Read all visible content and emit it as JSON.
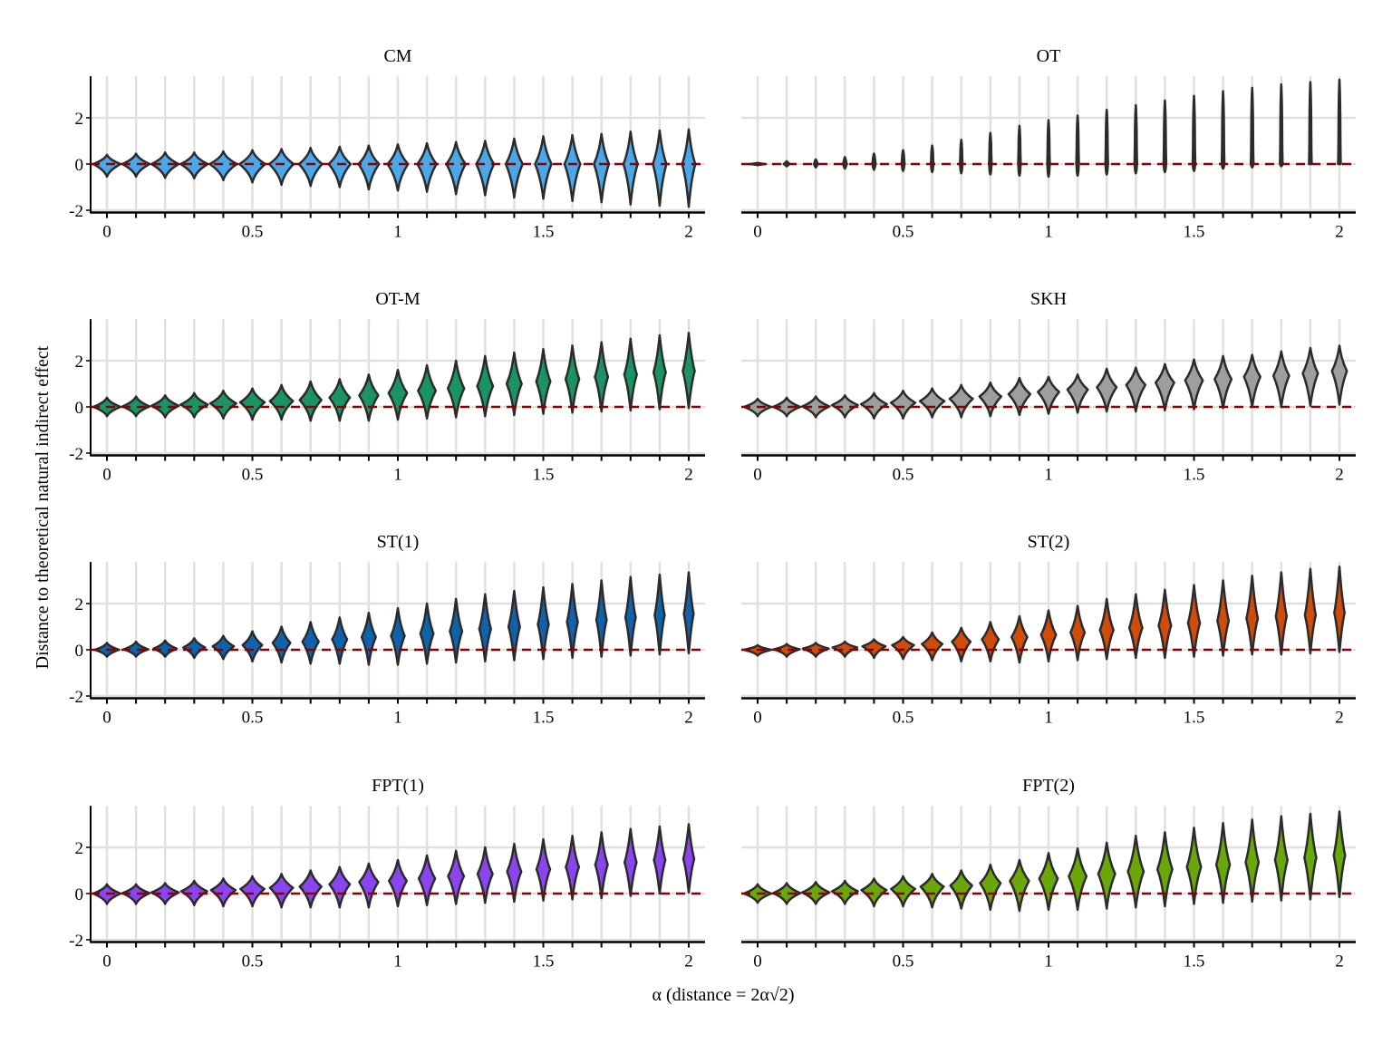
{
  "chart_data": {
    "type": "violin",
    "layout": "facet grid, 4 rows x 2 columns",
    "xlabel": "α (distance  = 2α√2)",
    "ylabel": "Distance to theoretical natural indirect effect",
    "x": [
      0,
      0.1,
      0.2,
      0.3,
      0.4,
      0.5,
      0.6,
      0.7,
      0.8,
      0.9,
      1,
      1.1,
      1.2,
      1.3,
      1.4,
      1.5,
      1.6,
      1.7,
      1.8,
      1.9,
      2
    ],
    "x_ticks": [
      "0",
      "0.5",
      "1",
      "1.5",
      "2"
    ],
    "x_tick_values": [
      0,
      0.5,
      1,
      1.5,
      2
    ],
    "y_ticks": [
      "-2",
      "0",
      "2"
    ],
    "y_tick_values": [
      -2,
      0,
      2
    ],
    "ylim": [
      -2,
      3.8
    ],
    "reference_line": {
      "y": 0,
      "style": "dashed",
      "color": "#8B0000"
    },
    "grid": true,
    "outline_color": "#2b2b2b",
    "panels": [
      {
        "title": "CM",
        "fill": "#4AA8E8",
        "center": [
          0,
          0,
          0,
          0,
          0,
          0,
          0,
          0,
          0,
          0,
          0,
          0,
          0,
          0,
          0,
          0,
          0,
          0,
          0,
          0,
          0
        ],
        "low": [
          -0.55,
          -0.55,
          -0.6,
          -0.62,
          -0.7,
          -0.8,
          -0.9,
          -0.95,
          -1.0,
          -1.1,
          -1.15,
          -1.2,
          -1.3,
          -1.35,
          -1.45,
          -1.5,
          -1.6,
          -1.65,
          -1.75,
          -1.8,
          -1.85
        ],
        "high": [
          0.4,
          0.45,
          0.5,
          0.5,
          0.55,
          0.6,
          0.65,
          0.7,
          0.75,
          0.8,
          0.85,
          0.9,
          0.95,
          1.0,
          1.1,
          1.2,
          1.25,
          1.3,
          1.4,
          1.45,
          1.5
        ],
        "width": [
          1,
          1,
          1,
          1,
          1,
          0.95,
          0.9,
          0.85,
          0.8,
          0.75,
          0.75,
          0.7,
          0.7,
          0.65,
          0.62,
          0.6,
          0.58,
          0.55,
          0.52,
          0.5,
          0.48
        ]
      },
      {
        "title": "OT",
        "fill": "#3a3a3a",
        "center": [
          0,
          0,
          0,
          0,
          0,
          0,
          0,
          0,
          0,
          0,
          0,
          0,
          0,
          0,
          0,
          0,
          0,
          0,
          0,
          0,
          0
        ],
        "low": [
          -0.05,
          -0.1,
          -0.15,
          -0.2,
          -0.25,
          -0.3,
          -0.35,
          -0.4,
          -0.45,
          -0.5,
          -0.55,
          -0.5,
          -0.45,
          -0.4,
          -0.35,
          -0.3,
          -0.2,
          -0.15,
          -0.1,
          0,
          0
        ],
        "high": [
          0.05,
          0.12,
          0.2,
          0.3,
          0.45,
          0.6,
          0.8,
          1.05,
          1.35,
          1.65,
          1.9,
          2.1,
          2.35,
          2.55,
          2.75,
          2.95,
          3.15,
          3.3,
          3.45,
          3.55,
          3.65
        ],
        "width": [
          0.6,
          0.22,
          0.15,
          0.15,
          0.13,
          0.12,
          0.1,
          0.1,
          0.1,
          0.1,
          0.1,
          0.1,
          0.1,
          0.1,
          0.1,
          0.1,
          0.1,
          0.1,
          0.1,
          0.1,
          0.1
        ]
      },
      {
        "title": "OT-M",
        "fill": "#1A9464",
        "center": [
          0,
          0.02,
          0.05,
          0.1,
          0.15,
          0.2,
          0.25,
          0.3,
          0.4,
          0.5,
          0.6,
          0.7,
          0.8,
          0.9,
          1.0,
          1.1,
          1.2,
          1.3,
          1.4,
          1.5,
          1.55
        ],
        "low": [
          -0.4,
          -0.4,
          -0.45,
          -0.45,
          -0.5,
          -0.55,
          -0.55,
          -0.6,
          -0.6,
          -0.6,
          -0.55,
          -0.5,
          -0.45,
          -0.4,
          -0.35,
          -0.3,
          -0.25,
          -0.2,
          -0.15,
          -0.1,
          -0.05
        ],
        "high": [
          0.4,
          0.45,
          0.5,
          0.6,
          0.7,
          0.8,
          0.95,
          1.1,
          1.2,
          1.4,
          1.6,
          1.8,
          2.0,
          2.2,
          2.35,
          2.5,
          2.65,
          2.8,
          2.95,
          3.1,
          3.2
        ],
        "width": [
          1,
          1,
          1,
          1,
          0.95,
          0.9,
          0.85,
          0.8,
          0.75,
          0.7,
          0.68,
          0.65,
          0.6,
          0.58,
          0.55,
          0.52,
          0.5,
          0.48,
          0.46,
          0.45,
          0.44
        ]
      },
      {
        "title": "SKH",
        "fill": "#9E9E9E",
        "center": [
          0,
          0,
          0.02,
          0.08,
          0.12,
          0.18,
          0.25,
          0.35,
          0.45,
          0.55,
          0.65,
          0.75,
          0.85,
          0.95,
          1.05,
          1.15,
          1.2,
          1.3,
          1.35,
          1.45,
          1.55
        ],
        "low": [
          -0.4,
          -0.4,
          -0.45,
          -0.45,
          -0.5,
          -0.5,
          -0.45,
          -0.45,
          -0.4,
          -0.35,
          -0.3,
          -0.25,
          -0.2,
          -0.2,
          -0.15,
          -0.1,
          -0.05,
          0,
          0,
          0.05,
          0.1
        ],
        "high": [
          0.35,
          0.4,
          0.45,
          0.5,
          0.6,
          0.7,
          0.8,
          0.95,
          1.05,
          1.25,
          1.3,
          1.4,
          1.65,
          1.7,
          1.85,
          2.05,
          2.2,
          2.25,
          2.4,
          2.55,
          2.65
        ],
        "width": [
          1,
          1,
          1,
          0.95,
          0.95,
          0.9,
          0.9,
          0.85,
          0.8,
          0.8,
          0.78,
          0.75,
          0.72,
          0.7,
          0.68,
          0.65,
          0.62,
          0.6,
          0.58,
          0.56,
          0.55
        ]
      },
      {
        "title": "ST(1)",
        "fill": "#0F62AC",
        "center": [
          0,
          0.02,
          0.05,
          0.1,
          0.15,
          0.2,
          0.3,
          0.35,
          0.45,
          0.55,
          0.6,
          0.7,
          0.8,
          0.9,
          1.0,
          1.1,
          1.2,
          1.3,
          1.4,
          1.5,
          1.55
        ],
        "low": [
          -0.3,
          -0.3,
          -0.3,
          -0.35,
          -0.4,
          -0.5,
          -0.55,
          -0.6,
          -0.6,
          -0.65,
          -0.65,
          -0.6,
          -0.55,
          -0.5,
          -0.45,
          -0.4,
          -0.35,
          -0.3,
          -0.25,
          -0.2,
          -0.15
        ],
        "high": [
          0.3,
          0.35,
          0.4,
          0.5,
          0.6,
          0.8,
          1.0,
          1.2,
          1.4,
          1.6,
          1.8,
          2.0,
          2.2,
          2.4,
          2.55,
          2.7,
          2.85,
          3.0,
          3.15,
          3.25,
          3.35
        ],
        "width": [
          0.9,
          0.9,
          0.85,
          0.8,
          0.78,
          0.72,
          0.65,
          0.6,
          0.55,
          0.52,
          0.5,
          0.48,
          0.45,
          0.43,
          0.42,
          0.4,
          0.4,
          0.38,
          0.38,
          0.37,
          0.36
        ]
      },
      {
        "title": "ST(2)",
        "fill": "#D04C0A",
        "center": [
          0,
          0.02,
          0.05,
          0.1,
          0.15,
          0.2,
          0.25,
          0.35,
          0.45,
          0.55,
          0.65,
          0.75,
          0.85,
          0.95,
          1.05,
          1.15,
          1.25,
          1.35,
          1.45,
          1.5,
          1.6
        ],
        "low": [
          -0.25,
          -0.3,
          -0.3,
          -0.3,
          -0.35,
          -0.4,
          -0.45,
          -0.5,
          -0.5,
          -0.55,
          -0.5,
          -0.45,
          -0.4,
          -0.35,
          -0.35,
          -0.3,
          -0.25,
          -0.2,
          -0.2,
          -0.15,
          -0.1
        ],
        "high": [
          0.2,
          0.25,
          0.3,
          0.35,
          0.45,
          0.55,
          0.75,
          0.95,
          1.2,
          1.45,
          1.7,
          1.9,
          2.2,
          2.4,
          2.6,
          2.8,
          3.0,
          3.2,
          3.35,
          3.5,
          3.6
        ],
        "width": [
          1,
          0.95,
          0.95,
          0.9,
          0.85,
          0.8,
          0.75,
          0.68,
          0.62,
          0.58,
          0.55,
          0.52,
          0.5,
          0.48,
          0.46,
          0.44,
          0.42,
          0.42,
          0.4,
          0.4,
          0.38
        ]
      },
      {
        "title": "FPT(1)",
        "fill": "#8A45F0",
        "center": [
          0,
          0.02,
          0.05,
          0.1,
          0.15,
          0.2,
          0.25,
          0.3,
          0.4,
          0.5,
          0.55,
          0.65,
          0.75,
          0.85,
          0.95,
          1.05,
          1.15,
          1.25,
          1.35,
          1.45,
          1.5
        ],
        "low": [
          -0.45,
          -0.45,
          -0.45,
          -0.5,
          -0.55,
          -0.55,
          -0.6,
          -0.6,
          -0.6,
          -0.6,
          -0.55,
          -0.5,
          -0.45,
          -0.4,
          -0.35,
          -0.3,
          -0.25,
          -0.2,
          -0.1,
          0,
          0.05
        ],
        "high": [
          0.4,
          0.4,
          0.45,
          0.55,
          0.65,
          0.75,
          0.85,
          1.0,
          1.15,
          1.3,
          1.45,
          1.65,
          1.85,
          2.0,
          2.15,
          2.35,
          2.5,
          2.65,
          2.8,
          2.9,
          3.0
        ],
        "width": [
          1,
          1,
          1,
          0.95,
          0.9,
          0.88,
          0.85,
          0.8,
          0.75,
          0.7,
          0.65,
          0.6,
          0.58,
          0.55,
          0.52,
          0.5,
          0.48,
          0.46,
          0.44,
          0.42,
          0.4
        ]
      },
      {
        "title": "FPT(2)",
        "fill": "#6AA80A",
        "center": [
          0,
          0.02,
          0.05,
          0.1,
          0.15,
          0.2,
          0.3,
          0.35,
          0.45,
          0.55,
          0.65,
          0.75,
          0.85,
          0.95,
          1.05,
          1.15,
          1.25,
          1.35,
          1.45,
          1.55,
          1.65
        ],
        "low": [
          -0.4,
          -0.45,
          -0.45,
          -0.45,
          -0.55,
          -0.55,
          -0.6,
          -0.65,
          -0.7,
          -0.75,
          -0.7,
          -0.7,
          -0.65,
          -0.6,
          -0.55,
          -0.45,
          -0.4,
          -0.35,
          -0.3,
          -0.25,
          -0.15
        ],
        "high": [
          0.4,
          0.45,
          0.5,
          0.55,
          0.65,
          0.75,
          0.85,
          1.0,
          1.25,
          1.45,
          1.75,
          1.95,
          2.2,
          2.5,
          2.65,
          2.85,
          3.05,
          3.2,
          3.35,
          3.45,
          3.55
        ],
        "width": [
          1,
          1,
          1,
          0.95,
          0.92,
          0.88,
          0.85,
          0.8,
          0.75,
          0.7,
          0.68,
          0.65,
          0.62,
          0.58,
          0.55,
          0.52,
          0.5,
          0.48,
          0.46,
          0.44,
          0.42
        ]
      }
    ]
  }
}
